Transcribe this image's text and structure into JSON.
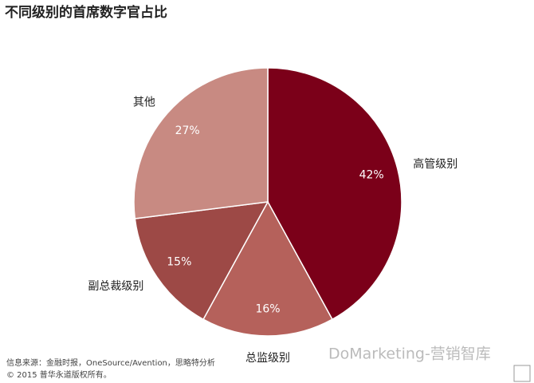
{
  "chart_data": {
    "type": "pie",
    "title": "不同级别的首席数字官占比",
    "categories": [
      "高管级别",
      "总监级别",
      "副总裁级别",
      "其他"
    ],
    "values": [
      42,
      16,
      15,
      27
    ],
    "value_labels": [
      "42%",
      "16%",
      "15%",
      "27%"
    ],
    "colors": [
      "#7b0019",
      "#b5615b",
      "#9d4946",
      "#c88a82"
    ],
    "notes": [
      "信息来源：金融时报，OneSource/Avention，思略特分析",
      "© 2015 普华永道版权所有。"
    ],
    "watermark": "DoMarketing-营销智库"
  }
}
